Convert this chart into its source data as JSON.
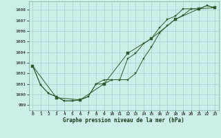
{
  "bg_color": "#cceee8",
  "grid_color": "#aacccc",
  "line_color": "#2d5a2d",
  "marker_color": "#2d5a2d",
  "title": "Graphe pression niveau de la mer (hPa)",
  "ylim": [
    998.5,
    1008.8
  ],
  "xlim": [
    -0.5,
    23.5
  ],
  "yticks": [
    999,
    1000,
    1001,
    1002,
    1003,
    1004,
    1005,
    1006,
    1007,
    1008
  ],
  "xticks": [
    0,
    1,
    2,
    3,
    4,
    5,
    6,
    7,
    8,
    9,
    10,
    11,
    12,
    13,
    14,
    15,
    16,
    17,
    18,
    19,
    20,
    21,
    22,
    23
  ],
  "series1_x": [
    0,
    1,
    2,
    3,
    4,
    5,
    6,
    7,
    8,
    9,
    10,
    11,
    12,
    13,
    14,
    15,
    16,
    17,
    18,
    19,
    20,
    21,
    22,
    23
  ],
  "series1_y": [
    1002.7,
    1000.9,
    1000.1,
    999.8,
    999.4,
    999.4,
    999.5,
    999.8,
    1001.0,
    1001.4,
    1001.4,
    1001.4,
    1003.4,
    1003.9,
    1004.8,
    1005.3,
    1006.3,
    1007.1,
    1007.4,
    1008.1,
    1008.1,
    1008.1,
    1008.4,
    1008.2
  ],
  "series2_x": [
    0,
    1,
    2,
    3,
    4,
    5,
    6,
    7,
    8,
    9,
    10,
    11,
    12,
    13,
    14,
    15,
    16,
    17,
    18,
    19,
    20,
    21,
    22,
    23
  ],
  "series2_y": [
    1002.7,
    1000.9,
    1000.1,
    999.8,
    999.4,
    999.4,
    999.5,
    999.8,
    1001.0,
    1001.0,
    1001.4,
    1001.4,
    1001.4,
    1002.0,
    1003.4,
    1004.5,
    1005.8,
    1006.5,
    1007.1,
    1007.5,
    1008.1,
    1008.1,
    1008.4,
    1008.2
  ],
  "series3_x": [
    0,
    3,
    6,
    9,
    12,
    15,
    18,
    21,
    23
  ],
  "series3_y": [
    1002.7,
    999.7,
    999.5,
    1001.0,
    1003.9,
    1005.3,
    1007.1,
    1008.1,
    1008.2
  ]
}
